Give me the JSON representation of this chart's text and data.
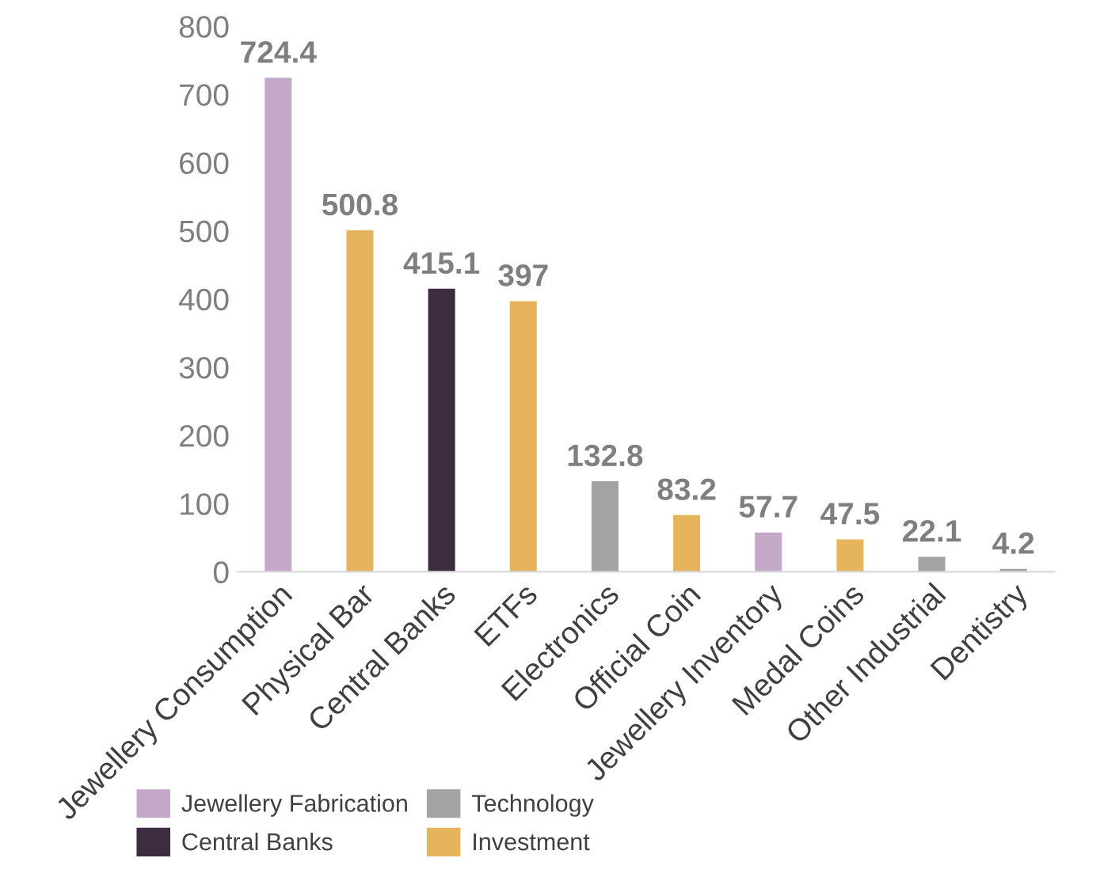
{
  "chart_data": {
    "type": "bar",
    "categories": [
      "Jewellery Consumption",
      "Physical Bar",
      "Central Banks",
      "ETFs",
      "Electronics",
      "Official Coin",
      "Jewellery Inventory",
      "Medal Coins",
      "Other Industrial",
      "Dentistry"
    ],
    "series": [
      {
        "name": "Jewellery Fabrication",
        "color": "#c4a8c8",
        "values": [
          724.4,
          null,
          null,
          null,
          null,
          null,
          57.7,
          null,
          null,
          null
        ]
      },
      {
        "name": "Central Banks",
        "color": "#3d2b3f",
        "values": [
          null,
          null,
          415.1,
          null,
          null,
          null,
          null,
          null,
          null,
          null
        ]
      },
      {
        "name": "Technology",
        "color": "#a3a3a3",
        "values": [
          null,
          null,
          null,
          null,
          132.8,
          null,
          null,
          null,
          22.1,
          4.2
        ]
      },
      {
        "name": "Investment",
        "color": "#e6b45c",
        "values": [
          null,
          500.8,
          null,
          397,
          null,
          83.2,
          null,
          47.5,
          null,
          null
        ]
      }
    ],
    "ylim": [
      0,
      800
    ],
    "yticks": [
      0,
      100,
      200,
      300,
      400,
      500,
      600,
      700,
      800
    ],
    "grid": false,
    "legend": "bottom",
    "data_labels": true
  }
}
